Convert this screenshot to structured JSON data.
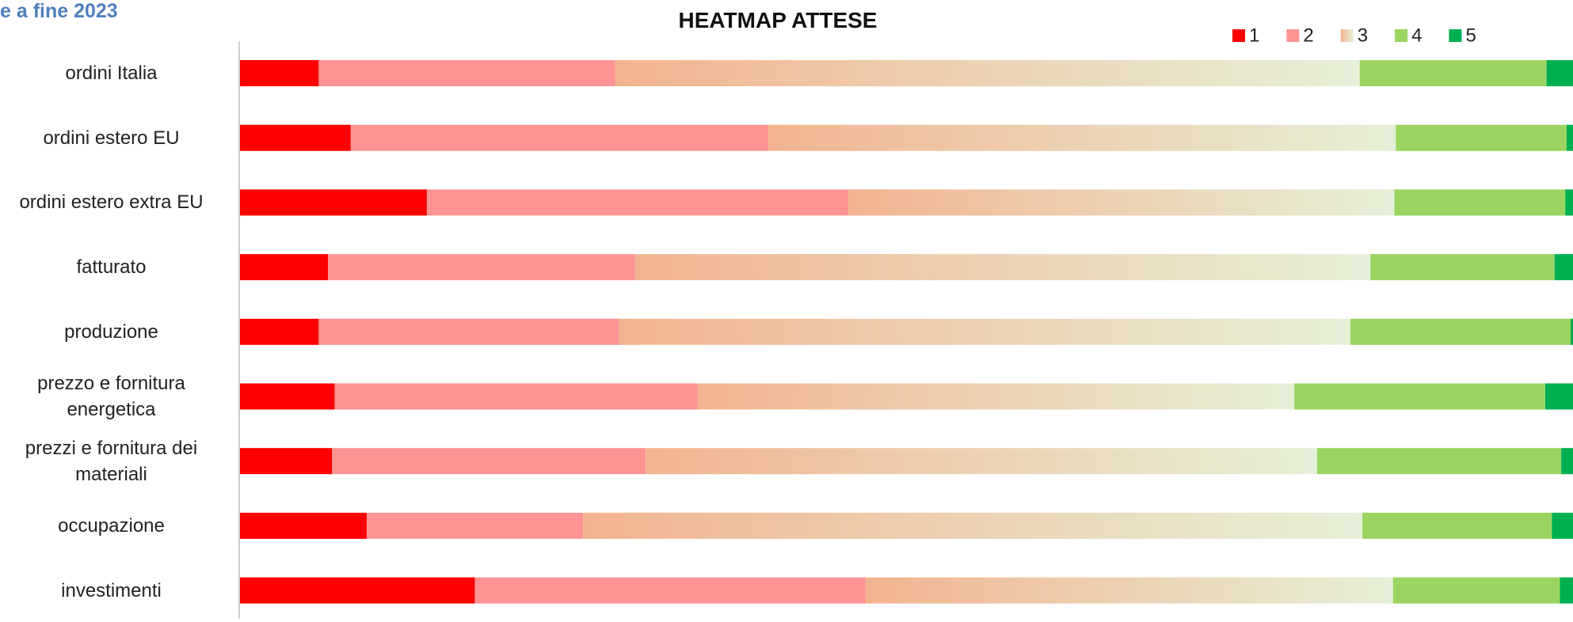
{
  "header_text": "e a fine 2023",
  "chart_data": {
    "type": "stacked_barh",
    "title": "HEATMAP ATTESE",
    "categories": [
      "ordini Italia",
      "ordini estero EU",
      "ordini estero extra EU",
      "fatturato ",
      "produzione",
      "prezzo e fornitura energetica",
      "prezzi e fornitura dei materiali",
      "occupazione",
      "investimenti"
    ],
    "xlim": [
      0,
      100
    ],
    "series": [
      {
        "name": "1",
        "color": "#ff0000",
        "values": [
          5.9,
          8.3,
          14.0,
          6.6,
          5.9,
          7.1,
          6.9,
          9.5,
          17.6
        ]
      },
      {
        "name": "2",
        "color": "#ff9393",
        "values": [
          22.2,
          31.3,
          31.6,
          23.0,
          22.5,
          27.2,
          23.5,
          16.2,
          29.3
        ]
      },
      {
        "name": "3",
        "color": [
          "#f2b48f",
          "#e6f0d8"
        ],
        "values": [
          55.8,
          47.0,
          40.9,
          55.1,
          54.8,
          44.7,
          50.3,
          58.4,
          39.5
        ]
      },
      {
        "name": "4",
        "color": "#9bd461",
        "values": [
          14.0,
          12.8,
          12.8,
          13.8,
          16.5,
          18.8,
          18.3,
          14.2,
          12.5
        ]
      },
      {
        "name": "5",
        "color": "#00b050",
        "values": [
          2.0,
          0.6,
          0.8,
          1.5,
          0.3,
          2.3,
          1.0,
          1.7,
          1.1
        ]
      }
    ]
  }
}
